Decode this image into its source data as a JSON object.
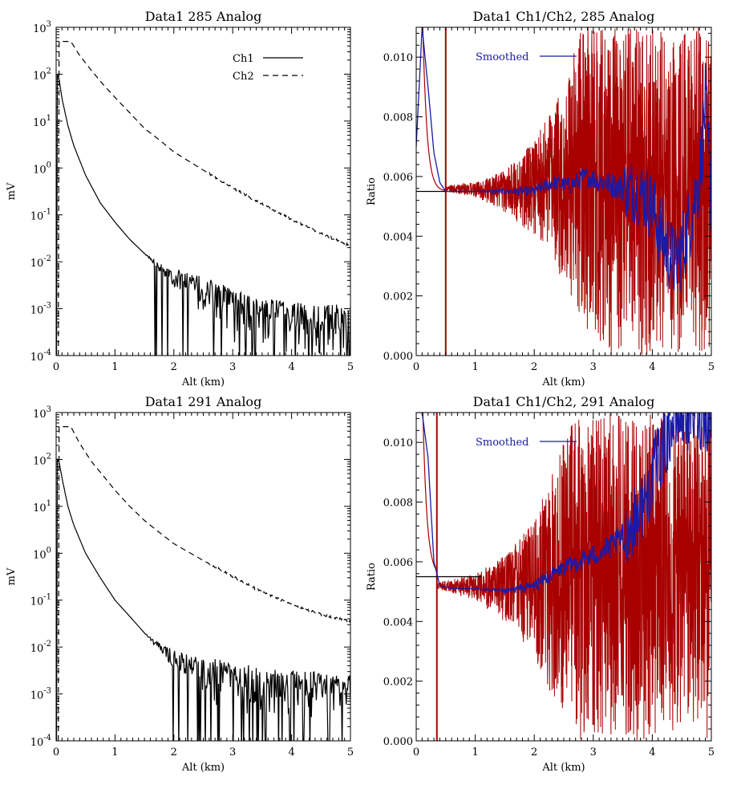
{
  "chart_data": [
    {
      "type": "line",
      "title": "Data1 285 Analog",
      "xlabel": "Alt (km)",
      "ylabel": "mV",
      "xlim": [
        0,
        5
      ],
      "ylim": [
        0.0001,
        1000
      ],
      "yscale": "log",
      "x_ticks": [
        "0",
        "1",
        "2",
        "3",
        "4",
        "5"
      ],
      "y_ticks": [
        {
          "base": "10",
          "exp": "3"
        },
        {
          "base": "10",
          "exp": "2"
        },
        {
          "base": "10",
          "exp": "1"
        },
        {
          "base": "10",
          "exp": "0"
        },
        {
          "base": "10",
          "exp": "-1"
        },
        {
          "base": "10",
          "exp": "-2"
        },
        {
          "base": "10",
          "exp": "-3"
        },
        {
          "base": "10",
          "exp": "-4"
        }
      ],
      "grid": false,
      "legend": {
        "position": "top-right",
        "entries": [
          "Ch1",
          "Ch2"
        ]
      },
      "series": [
        {
          "name": "Ch1",
          "style": "solid",
          "color": "#000000",
          "x": [
            0.02,
            0.05,
            0.1,
            0.2,
            0.3,
            0.5,
            0.75,
            1.0,
            1.25,
            1.5,
            1.75,
            2.0,
            2.25,
            2.5,
            2.75,
            3.0,
            3.5,
            4.0,
            4.5,
            5.0
          ],
          "y": [
            100,
            80,
            30,
            8,
            3,
            0.7,
            0.18,
            0.07,
            0.03,
            0.015,
            0.008,
            0.005,
            0.0035,
            0.0025,
            0.0018,
            0.0012,
            0.0008,
            0.0007,
            0.0006,
            0.0006
          ]
        },
        {
          "name": "Ch2",
          "style": "dashed",
          "color": "#000000",
          "x": [
            0.05,
            0.15,
            0.25,
            0.4,
            0.6,
            0.8,
            1.0,
            1.25,
            1.5,
            1.75,
            2.0,
            2.5,
            3.0,
            3.5,
            4.0,
            4.5,
            5.0
          ],
          "y": [
            500,
            500,
            500,
            250,
            120,
            60,
            32,
            15,
            7,
            4,
            2.2,
            0.9,
            0.38,
            0.17,
            0.08,
            0.04,
            0.022
          ]
        }
      ]
    },
    {
      "type": "line",
      "title": "Data1 Ch1/Ch2, 285 Analog",
      "xlabel": "Alt (km)",
      "ylabel": "Ratio",
      "xlim": [
        0,
        5
      ],
      "ylim": [
        0,
        0.011
      ],
      "x_ticks": [
        "0",
        "1",
        "2",
        "3",
        "4",
        "5"
      ],
      "y_ticks": [
        "0.000",
        "0.002",
        "0.004",
        "0.006",
        "0.008",
        "0.010"
      ],
      "grid": false,
      "legend": {
        "position": "top-left",
        "entries": [
          "Smoothed"
        ]
      },
      "reference_line_y": 0.0055,
      "vertical_marker_x": 0.5,
      "noise_band": [
        {
          "x": 0.5,
          "lo": 0.0055,
          "hi": 0.0057
        },
        {
          "x": 1.0,
          "lo": 0.0053,
          "hi": 0.0058
        },
        {
          "x": 1.5,
          "lo": 0.0048,
          "hi": 0.0062
        },
        {
          "x": 2.0,
          "lo": 0.004,
          "hi": 0.0072
        },
        {
          "x": 2.5,
          "lo": 0.0025,
          "hi": 0.009
        },
        {
          "x": 2.8,
          "lo": 0.001,
          "hi": 0.011
        },
        {
          "x": 3.2,
          "lo": 0.0,
          "hi": 0.011
        },
        {
          "x": 5.0,
          "lo": 0.0,
          "hi": 0.011
        }
      ],
      "series": [
        {
          "name": "Smoothed",
          "color": "#1a1aa8",
          "x": [
            0.0,
            0.1,
            0.2,
            0.3,
            0.4,
            0.5,
            1.0,
            1.5,
            2.0,
            2.3,
            2.6,
            2.9,
            3.2,
            3.5,
            3.8,
            4.0,
            4.2,
            4.4,
            4.6,
            4.8,
            4.9,
            5.0
          ],
          "y": [
            0.007,
            0.011,
            0.009,
            0.0068,
            0.0058,
            0.0055,
            0.0055,
            0.0055,
            0.0055,
            0.0058,
            0.0057,
            0.006,
            0.0058,
            0.0056,
            0.0055,
            0.005,
            0.0038,
            0.003,
            0.0042,
            0.006,
            0.0085,
            0.005
          ]
        }
      ]
    },
    {
      "type": "line",
      "title": "Data1 291 Analog",
      "xlabel": "Alt (km)",
      "ylabel": "mV",
      "xlim": [
        0,
        5
      ],
      "ylim": [
        0.0001,
        1000
      ],
      "yscale": "log",
      "x_ticks": [
        "0",
        "1",
        "2",
        "3",
        "4",
        "5"
      ],
      "y_ticks": [
        {
          "base": "10",
          "exp": "3"
        },
        {
          "base": "10",
          "exp": "2"
        },
        {
          "base": "10",
          "exp": "1"
        },
        {
          "base": "10",
          "exp": "0"
        },
        {
          "base": "10",
          "exp": "-1"
        },
        {
          "base": "10",
          "exp": "-2"
        },
        {
          "base": "10",
          "exp": "-3"
        },
        {
          "base": "10",
          "exp": "-4"
        }
      ],
      "grid": false,
      "series": [
        {
          "style": "solid",
          "color": "#000000",
          "x": [
            0.02,
            0.05,
            0.1,
            0.2,
            0.3,
            0.5,
            0.75,
            1.0,
            1.25,
            1.5,
            1.75,
            2.0,
            2.25,
            2.5,
            3.0,
            3.5,
            4.0,
            4.5,
            5.0
          ],
          "y": [
            100,
            90,
            40,
            10,
            4,
            1,
            0.3,
            0.1,
            0.045,
            0.02,
            0.01,
            0.006,
            0.004,
            0.003,
            0.0022,
            0.0018,
            0.0015,
            0.0014,
            0.0013
          ]
        },
        {
          "style": "dashed",
          "color": "#000000",
          "x": [
            0.05,
            0.15,
            0.25,
            0.4,
            0.6,
            0.8,
            1.0,
            1.25,
            1.5,
            1.75,
            2.0,
            2.5,
            3.0,
            3.5,
            4.0,
            4.5,
            5.0
          ],
          "y": [
            500,
            500,
            500,
            220,
            90,
            45,
            22,
            10,
            5,
            2.8,
            1.6,
            0.7,
            0.32,
            0.15,
            0.08,
            0.05,
            0.035
          ]
        }
      ]
    },
    {
      "type": "line",
      "title": "Data1 Ch1/Ch2, 291 Analog",
      "xlabel": "Alt (km)",
      "ylabel": "Ratio",
      "xlim": [
        0,
        5
      ],
      "ylim": [
        0,
        0.011
      ],
      "x_ticks": [
        "0",
        "1",
        "2",
        "3",
        "4",
        "5"
      ],
      "y_ticks": [
        "0.000",
        "0.002",
        "0.004",
        "0.006",
        "0.008",
        "0.010"
      ],
      "grid": false,
      "legend": {
        "position": "top-left",
        "entries": [
          "Smoothed"
        ]
      },
      "reference_line_y": 0.0055,
      "vertical_marker_x": 0.35,
      "noise_band": [
        {
          "x": 0.35,
          "lo": 0.0051,
          "hi": 0.0053
        },
        {
          "x": 1.0,
          "lo": 0.0047,
          "hi": 0.0056
        },
        {
          "x": 1.5,
          "lo": 0.004,
          "hi": 0.0062
        },
        {
          "x": 2.0,
          "lo": 0.0028,
          "hi": 0.0075
        },
        {
          "x": 2.3,
          "lo": 0.0015,
          "hi": 0.009
        },
        {
          "x": 2.6,
          "lo": 0.0005,
          "hi": 0.0105
        },
        {
          "x": 2.8,
          "lo": 0.0,
          "hi": 0.011
        },
        {
          "x": 5.0,
          "lo": 0.0,
          "hi": 0.011
        }
      ],
      "series": [
        {
          "name": "Smoothed",
          "color": "#1a1aa8",
          "x": [
            0.0,
            0.1,
            0.2,
            0.3,
            0.4,
            0.6,
            1.0,
            1.5,
            2.0,
            2.5,
            3.0,
            3.3,
            3.6,
            3.9,
            4.1,
            4.3,
            4.5,
            4.7,
            5.0
          ],
          "y": [
            0.011,
            0.011,
            0.0095,
            0.006,
            0.0052,
            0.0051,
            0.0051,
            0.005,
            0.0052,
            0.0058,
            0.0062,
            0.0065,
            0.007,
            0.0082,
            0.0095,
            0.0105,
            0.011,
            0.011,
            0.011
          ]
        }
      ]
    }
  ]
}
